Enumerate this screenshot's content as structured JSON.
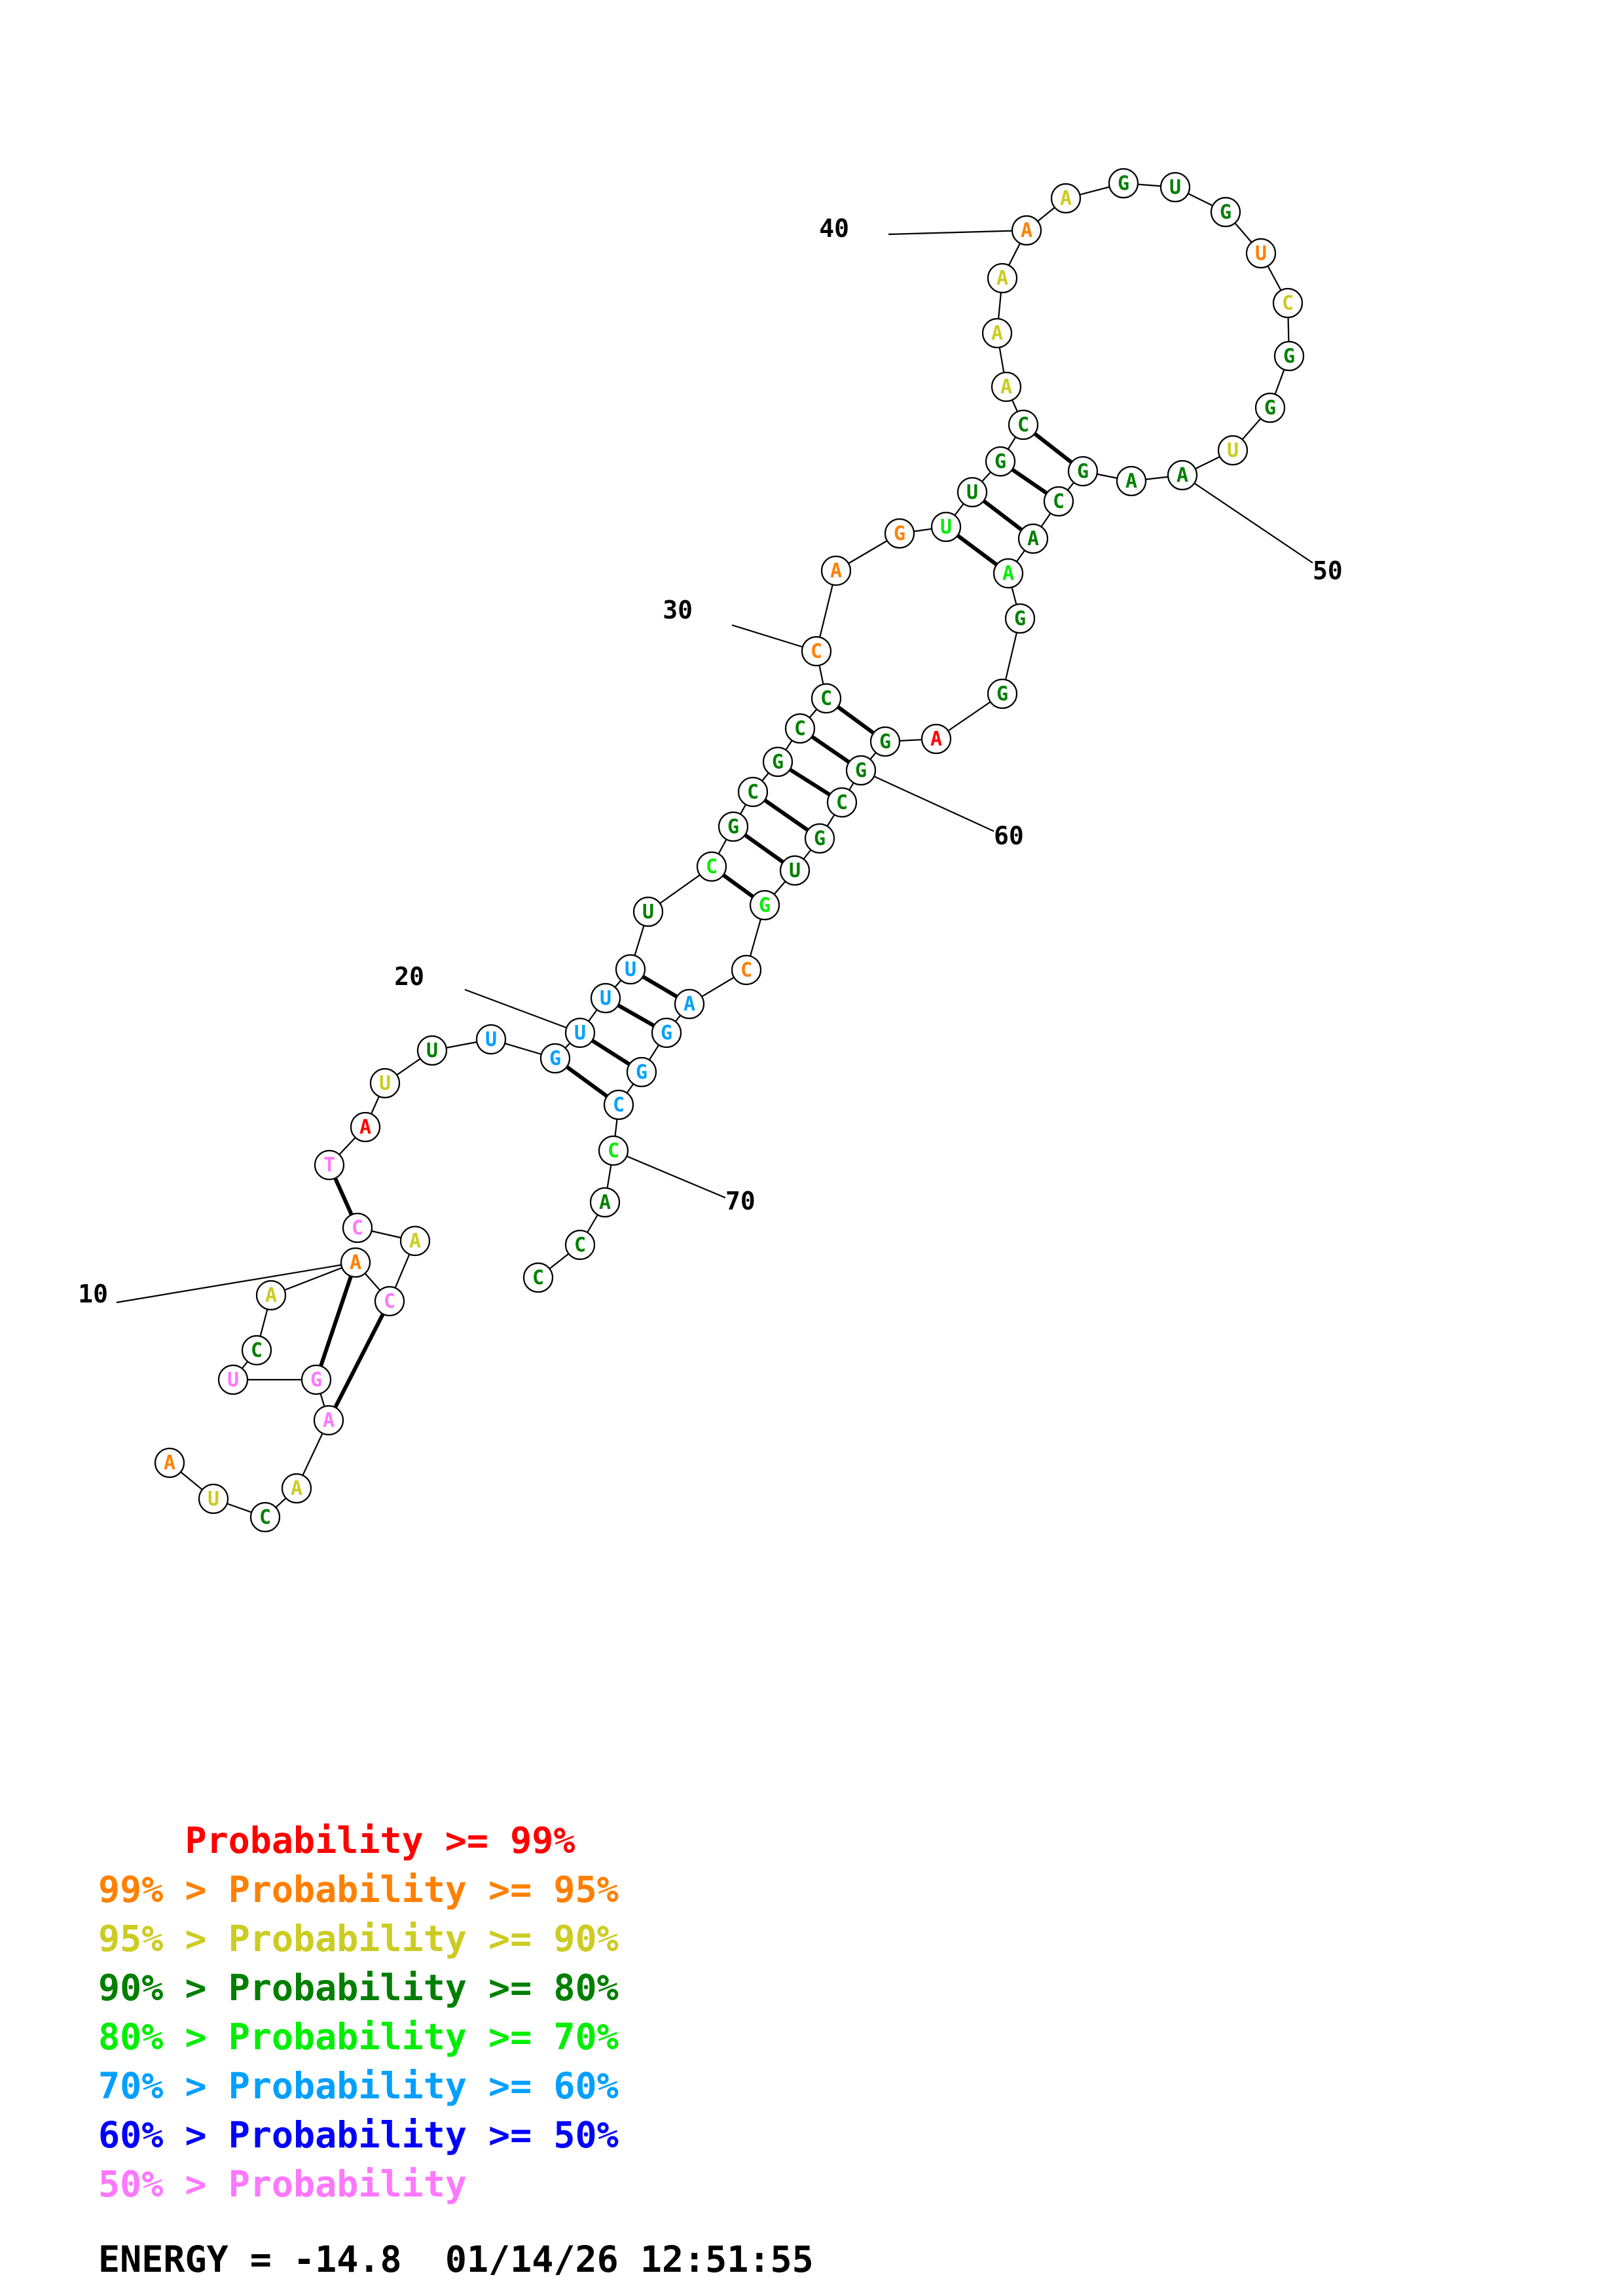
{
  "colors": {
    "red": "#ff0000",
    "orange": "#ff8000",
    "yellow": "#cccc22",
    "dkgreen": "#007f00",
    "green": "#00ee00",
    "cyan": "#00a0ff",
    "blue": "#0000ff",
    "pink": "#ff77ff"
  },
  "sequence": [
    {
      "b": "A",
      "c": "orange"
    },
    {
      "b": "U",
      "c": "yellow"
    },
    {
      "b": "C",
      "c": "dkgreen"
    },
    {
      "b": "A",
      "c": "yellow"
    },
    {
      "b": "A",
      "c": "pink"
    },
    {
      "b": "G",
      "c": "pink"
    },
    {
      "b": "U",
      "c": "pink"
    },
    {
      "b": "C",
      "c": "dkgreen"
    },
    {
      "b": "A",
      "c": "yellow"
    },
    {
      "b": "A",
      "c": "orange"
    },
    {
      "b": "C",
      "c": "pink"
    },
    {
      "b": "A",
      "c": "yellow"
    },
    {
      "b": "C",
      "c": "pink"
    },
    {
      "b": "T",
      "c": "pink"
    },
    {
      "b": "A",
      "c": "red"
    },
    {
      "b": "U",
      "c": "yellow"
    },
    {
      "b": "U",
      "c": "dkgreen"
    },
    {
      "b": "U",
      "c": "cyan"
    },
    {
      "b": "G",
      "c": "cyan"
    },
    {
      "b": "U",
      "c": "cyan"
    },
    {
      "b": "U",
      "c": "cyan"
    },
    {
      "b": "U",
      "c": "cyan"
    },
    {
      "b": "U",
      "c": "dkgreen"
    },
    {
      "b": "C",
      "c": "green"
    },
    {
      "b": "G",
      "c": "dkgreen"
    },
    {
      "b": "C",
      "c": "dkgreen"
    },
    {
      "b": "G",
      "c": "dkgreen"
    },
    {
      "b": "C",
      "c": "dkgreen"
    },
    {
      "b": "C",
      "c": "dkgreen"
    },
    {
      "b": "C",
      "c": "orange"
    },
    {
      "b": "A",
      "c": "orange"
    },
    {
      "b": "G",
      "c": "orange"
    },
    {
      "b": "U",
      "c": "green"
    },
    {
      "b": "U",
      "c": "dkgreen"
    },
    {
      "b": "G",
      "c": "dkgreen"
    },
    {
      "b": "C",
      "c": "dkgreen"
    },
    {
      "b": "A",
      "c": "yellow"
    },
    {
      "b": "A",
      "c": "yellow"
    },
    {
      "b": "A",
      "c": "yellow"
    },
    {
      "b": "A",
      "c": "orange"
    },
    {
      "b": "A",
      "c": "yellow"
    },
    {
      "b": "G",
      "c": "dkgreen"
    },
    {
      "b": "U",
      "c": "dkgreen"
    },
    {
      "b": "G",
      "c": "dkgreen"
    },
    {
      "b": "U",
      "c": "orange"
    },
    {
      "b": "C",
      "c": "yellow"
    },
    {
      "b": "G",
      "c": "dkgreen"
    },
    {
      "b": "G",
      "c": "dkgreen"
    },
    {
      "b": "U",
      "c": "yellow"
    },
    {
      "b": "A",
      "c": "dkgreen"
    },
    {
      "b": "A",
      "c": "dkgreen"
    },
    {
      "b": "G",
      "c": "dkgreen"
    },
    {
      "b": "C",
      "c": "dkgreen"
    },
    {
      "b": "A",
      "c": "dkgreen"
    },
    {
      "b": "A",
      "c": "green"
    },
    {
      "b": "G",
      "c": "dkgreen"
    },
    {
      "b": "G",
      "c": "dkgreen"
    },
    {
      "b": "A",
      "c": "red"
    },
    {
      "b": "G",
      "c": "dkgreen"
    },
    {
      "b": "G",
      "c": "dkgreen"
    },
    {
      "b": "C",
      "c": "dkgreen"
    },
    {
      "b": "G",
      "c": "dkgreen"
    },
    {
      "b": "U",
      "c": "dkgreen"
    },
    {
      "b": "G",
      "c": "green"
    },
    {
      "b": "C",
      "c": "orange"
    },
    {
      "b": "A",
      "c": "cyan"
    },
    {
      "b": "G",
      "c": "cyan"
    },
    {
      "b": "G",
      "c": "cyan"
    },
    {
      "b": "C",
      "c": "cyan"
    },
    {
      "b": "C",
      "c": "green"
    },
    {
      "b": "A",
      "c": "dkgreen"
    },
    {
      "b": "C",
      "c": "dkgreen"
    },
    {
      "b": "C",
      "c": "dkgreen"
    }
  ],
  "pairs": [
    [
      5,
      11
    ],
    [
      6,
      10
    ],
    [
      14,
      13
    ],
    [
      19,
      69
    ],
    [
      20,
      68
    ],
    [
      21,
      67
    ],
    [
      22,
      66
    ],
    [
      24,
      64
    ],
    [
      25,
      63
    ],
    [
      26,
      62
    ],
    [
      27,
      61
    ],
    [
      28,
      60
    ],
    [
      29,
      59
    ],
    [
      33,
      55
    ],
    [
      34,
      54
    ],
    [
      35,
      53
    ],
    [
      36,
      52
    ]
  ],
  "number_labels": [
    {
      "n": 10,
      "text": "10"
    },
    {
      "n": 20,
      "text": "20"
    },
    {
      "n": 30,
      "text": "30"
    },
    {
      "n": 40,
      "text": "40"
    },
    {
      "n": 50,
      "text": "50"
    },
    {
      "n": 60,
      "text": "60"
    },
    {
      "n": 70,
      "text": "70"
    }
  ],
  "legend": [
    {
      "prefix": "    ",
      "text": "Probability >= 99%",
      "color": "red"
    },
    {
      "prefix": "99% > ",
      "text": "Probability >= 95%",
      "color": "orange"
    },
    {
      "prefix": "95% > ",
      "text": "Probability >= 90%",
      "color": "yellow"
    },
    {
      "prefix": "90% > ",
      "text": "Probability >= 80%",
      "color": "dkgreen"
    },
    {
      "prefix": "80% > ",
      "text": "Probability >= 70%",
      "color": "green"
    },
    {
      "prefix": "70% > ",
      "text": "Probability >= 60%",
      "color": "cyan"
    },
    {
      "prefix": "60% > ",
      "text": "Probability >= 50%",
      "color": "blue"
    },
    {
      "prefix": "50% > ",
      "text": "Probability",
      "color": "pink"
    }
  ],
  "footer": {
    "energy": "ENERGY = -14.8",
    "timestamp": "01/14/26 12:51:55"
  }
}
